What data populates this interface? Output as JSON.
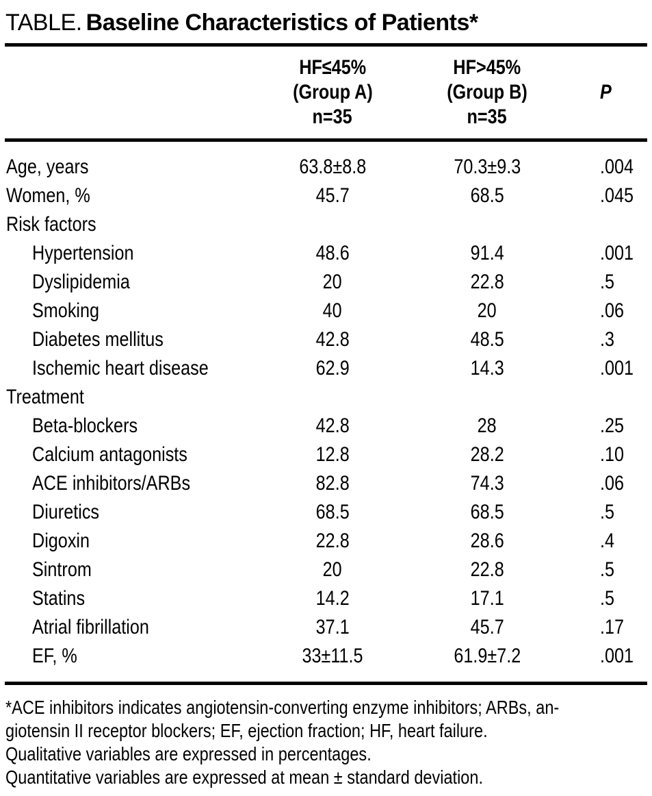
{
  "colors": {
    "text": "#000000",
    "background": "#ffffff",
    "rule": "#000000"
  },
  "title": {
    "prefix": "TABLE.",
    "main": "Baseline Characteristics of Patients*"
  },
  "header": {
    "group_a": {
      "line1": "HF≤45%",
      "line2": "(Group A)",
      "line3": "n=35"
    },
    "group_b": {
      "line1": "HF>45%",
      "line2": "(Group B)",
      "line3": "n=35"
    },
    "p": "P"
  },
  "rows": [
    {
      "label": "Age, years",
      "indent": false,
      "group_a": "63.8±8.8",
      "group_b": "70.3±9.3",
      "p": ".004"
    },
    {
      "label": "Women, %",
      "indent": false,
      "group_a": "45.7",
      "group_b": "68.5",
      "p": ".045"
    },
    {
      "label": "Risk factors",
      "indent": false,
      "group_a": "",
      "group_b": "",
      "p": ""
    },
    {
      "label": "Hypertension",
      "indent": true,
      "group_a": "48.6",
      "group_b": "91.4",
      "p": ".001"
    },
    {
      "label": "Dyslipidemia",
      "indent": true,
      "group_a": "20",
      "group_b": "22.8",
      "p": ".5"
    },
    {
      "label": "Smoking",
      "indent": true,
      "group_a": "40",
      "group_b": "20",
      "p": ".06"
    },
    {
      "label": "Diabetes mellitus",
      "indent": true,
      "group_a": "42.8",
      "group_b": "48.5",
      "p": ".3"
    },
    {
      "label": "Ischemic heart disease",
      "indent": true,
      "group_a": "62.9",
      "group_b": "14.3",
      "p": ".001"
    },
    {
      "label": "Treatment",
      "indent": false,
      "group_a": "",
      "group_b": "",
      "p": ""
    },
    {
      "label": "Beta-blockers",
      "indent": true,
      "group_a": "42.8",
      "group_b": "28",
      "p": ".25"
    },
    {
      "label": "Calcium antagonists",
      "indent": true,
      "group_a": "12.8",
      "group_b": "28.2",
      "p": ".10"
    },
    {
      "label": "ACE inhibitors/ARBs",
      "indent": true,
      "group_a": "82.8",
      "group_b": "74.3",
      "p": ".06"
    },
    {
      "label": "Diuretics",
      "indent": true,
      "group_a": "68.5",
      "group_b": "68.5",
      "p": ".5"
    },
    {
      "label": "Digoxin",
      "indent": true,
      "group_a": "22.8",
      "group_b": "28.6",
      "p": ".4"
    },
    {
      "label": "Sintrom",
      "indent": true,
      "group_a": "20",
      "group_b": "22.8",
      "p": ".5"
    },
    {
      "label": "Statins",
      "indent": true,
      "group_a": "14.2",
      "group_b": "17.1",
      "p": ".5"
    },
    {
      "label": "Atrial fibrillation",
      "indent": true,
      "group_a": "37.1",
      "group_b": "45.7",
      "p": ".17"
    },
    {
      "label": "EF, %",
      "indent": true,
      "group_a": "33±11.5",
      "group_b": "61.9±7.2",
      "p": ".001"
    }
  ],
  "footnotes": [
    "*ACE inhibitors indicates angiotensin-converting enzyme inhibitors; ARBs, an-",
    "giotensin II receptor blockers; EF, ejection fraction; HF, heart failure.",
    "Qualitative variables are expressed in percentages.",
    "Quantitative variables are expressed at mean ± standard deviation."
  ]
}
